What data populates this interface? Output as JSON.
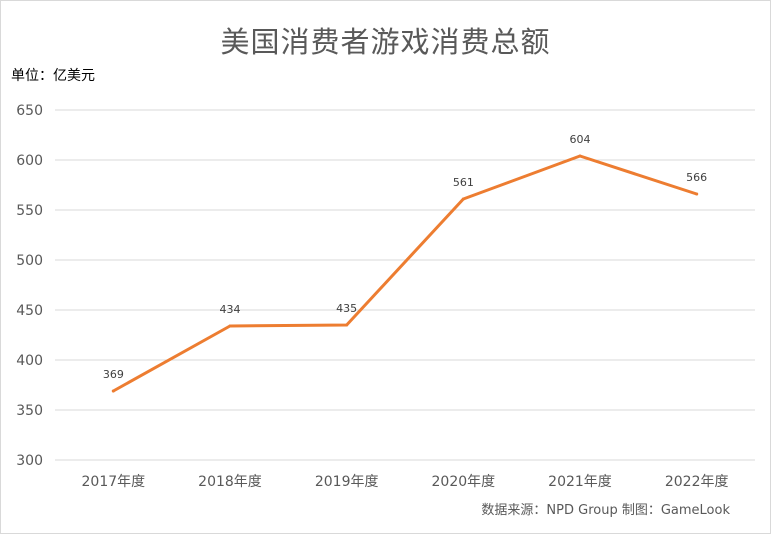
{
  "title": "美国消费者游戏消费总额",
  "unit_label": "单位：亿美元",
  "source": "数据来源：NPD Group  制图：GameLook",
  "colors": {
    "line": "#ED7D31",
    "grid": "#D9D9D9",
    "text": "#595959"
  },
  "chart_data": {
    "type": "line",
    "title": "美国消费者游戏消费总额",
    "categories": [
      "2017年度",
      "2018年度",
      "2019年度",
      "2020年度",
      "2021年度",
      "2022年度"
    ],
    "series": [
      {
        "values": [
          369,
          434,
          435,
          561,
          604,
          566
        ]
      }
    ],
    "ylim": [
      300,
      650
    ],
    "yticks": [
      300,
      350,
      400,
      450,
      500,
      550,
      600,
      650
    ],
    "ylabel": "单位：亿美元",
    "xlabel": "",
    "grid": true,
    "data_labels": true,
    "legend": "none"
  }
}
